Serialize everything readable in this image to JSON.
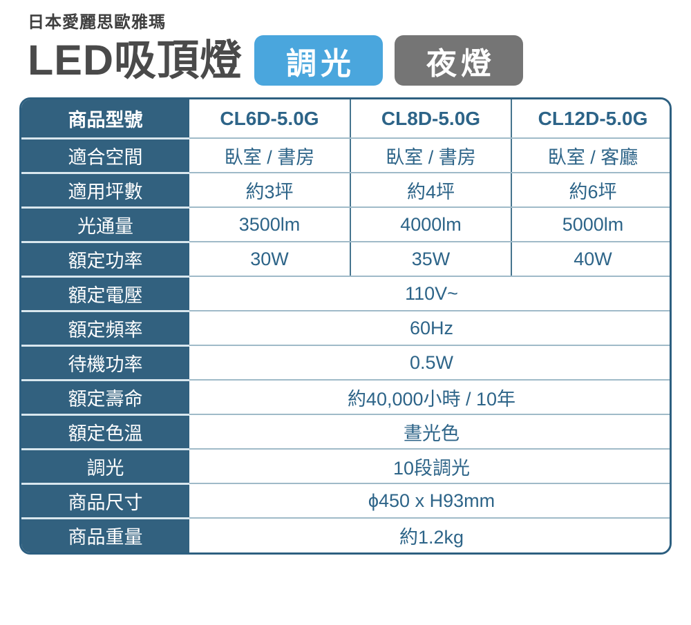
{
  "header": {
    "brand": "日本愛麗思歐雅瑪",
    "title": "LED吸頂燈",
    "badges": [
      {
        "id": "dimming",
        "label": "調光",
        "color": "#4aa6dd"
      },
      {
        "id": "nightlight",
        "label": "夜燈",
        "color": "#757575"
      }
    ]
  },
  "colors": {
    "label_column_bg": "#32617f",
    "table_border": "#2d5f80",
    "data_text": "#2d6488",
    "row_separator": "#9fbac8",
    "label_separator": "#d9e7ee",
    "title_text": "#4a4a4a"
  },
  "table": {
    "header_row": {
      "label": "商品型號",
      "values": [
        "CL6D-5.0G",
        "CL8D-5.0G",
        "CL12D-5.0G"
      ]
    },
    "rows": [
      {
        "label": "適合空間",
        "values": [
          "臥室 / 書房",
          "臥室 / 書房",
          "臥室 / 客廳"
        ]
      },
      {
        "label": "適用坪數",
        "values": [
          "約3坪",
          "約4坪",
          "約6坪"
        ]
      },
      {
        "label": "光通量",
        "values": [
          "3500lm",
          "4000lm",
          "5000lm"
        ]
      },
      {
        "label": "額定功率",
        "values": [
          "30W",
          "35W",
          "40W"
        ]
      },
      {
        "label": "額定電壓",
        "merged": "110V~"
      },
      {
        "label": "額定頻率",
        "merged": "60Hz"
      },
      {
        "label": "待機功率",
        "merged": "0.5W"
      },
      {
        "label": "額定壽命",
        "merged": "約40,000小時 / 10年"
      },
      {
        "label": "額定色溫",
        "merged": "晝光色"
      },
      {
        "label": "調光",
        "merged": "10段調光"
      },
      {
        "label": "商品尺寸",
        "merged": "ϕ450 x H93mm"
      },
      {
        "label": "商品重量",
        "merged": "約1.2kg"
      }
    ]
  }
}
